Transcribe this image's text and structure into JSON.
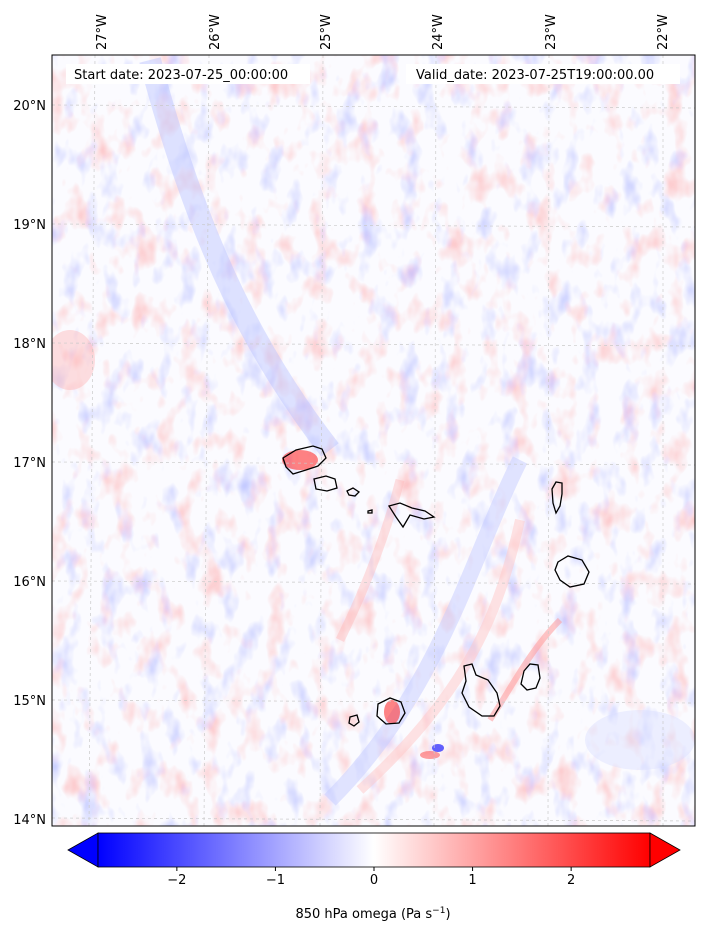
{
  "map": {
    "start_label": "Start date: 2023-07-25_00:00:00",
    "valid_label": "Valid_date: 2023-07-25T19:00:00.00",
    "lon_labels": [
      "27°W",
      "26°W",
      "25°W",
      "24°W",
      "23°W",
      "22°W"
    ],
    "lat_labels": [
      "20°N",
      "19°N",
      "18°N",
      "17°N",
      "16°N",
      "15°N",
      "14°N"
    ],
    "extent": {
      "lon_min": -27.4,
      "lon_max": -21.75,
      "lat_min": 13.95,
      "lat_max": 20.45
    },
    "field": "850 hPa omega",
    "gridlines": true
  },
  "colorbar": {
    "label": "850 hPa omega (Pa s",
    "label_unit_sup": "−1",
    "label_close": ")",
    "ticks": [
      "−2",
      "−1",
      "0",
      "1",
      "2"
    ],
    "tick_values": [
      -2,
      -1,
      0,
      1,
      2
    ],
    "range": [
      -2.8,
      2.8
    ],
    "extend": "both",
    "colormap": "bwr",
    "colors": {
      "low": "#0000ff",
      "mid": "#ffffff",
      "high": "#ff0000"
    }
  },
  "features": {
    "islands": [
      "Santo Antão",
      "São Vicente",
      "Santa Luzia",
      "São Nicolau",
      "Sal",
      "Boa Vista",
      "Maio",
      "Santiago",
      "Fogo",
      "Brava"
    ],
    "coastline_color": "#000000"
  }
}
